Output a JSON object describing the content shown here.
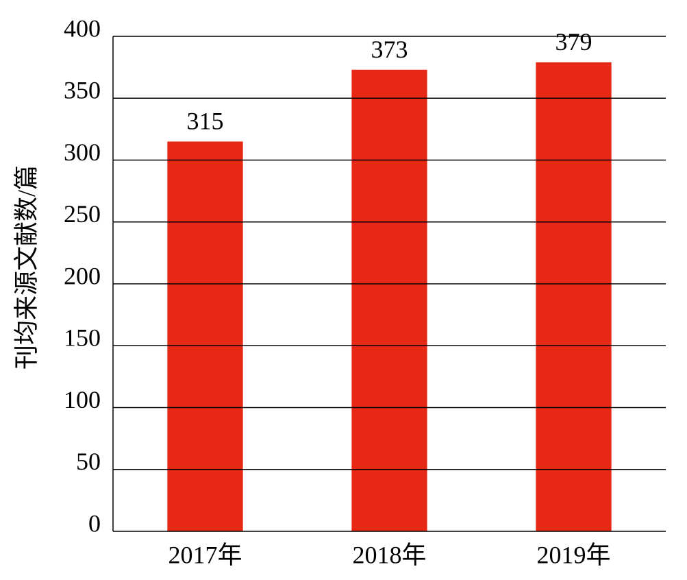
{
  "chart_data": {
    "type": "bar",
    "y_label": "刊均来源文献数/篇",
    "categories": [
      "2017年",
      "2018年",
      "2019年"
    ],
    "values": [
      315,
      373,
      379
    ],
    "color": "#e62814",
    "ylim": [
      0,
      400
    ],
    "yticks": [
      0,
      50,
      100,
      150,
      200,
      250,
      300,
      350,
      400
    ],
    "grid": true
  }
}
